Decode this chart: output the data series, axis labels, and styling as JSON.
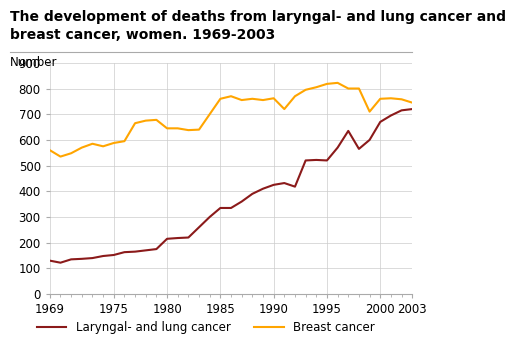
{
  "title_line1": "The development of deaths from laryngal- and lung cancer and",
  "title_line2": "breast cancer, women. 1969-2003",
  "ylabel": "Number",
  "years": [
    1969,
    1970,
    1971,
    1972,
    1973,
    1974,
    1975,
    1976,
    1977,
    1978,
    1979,
    1980,
    1981,
    1982,
    1983,
    1984,
    1985,
    1986,
    1987,
    1988,
    1989,
    1990,
    1991,
    1992,
    1993,
    1994,
    1995,
    1996,
    1997,
    1998,
    1999,
    2000,
    2001,
    2002,
    2003
  ],
  "larynx_lung": [
    130,
    122,
    135,
    137,
    140,
    148,
    152,
    163,
    165,
    170,
    175,
    215,
    218,
    220,
    260,
    300,
    335,
    335,
    360,
    390,
    410,
    425,
    432,
    418,
    520,
    522,
    520,
    570,
    635,
    565,
    600,
    670,
    695,
    715,
    720
  ],
  "breast": [
    560,
    535,
    548,
    570,
    585,
    575,
    588,
    595,
    665,
    675,
    678,
    645,
    645,
    638,
    640,
    700,
    760,
    770,
    755,
    760,
    755,
    762,
    720,
    770,
    795,
    805,
    818,
    822,
    800,
    800,
    710,
    760,
    762,
    758,
    745
  ],
  "larynx_color": "#8B1A1A",
  "breast_color": "#FFA500",
  "legend_larynx": "Laryngal- and lung cancer",
  "legend_breast": "Breast cancer",
  "xlim": [
    1969,
    2003
  ],
  "ylim": [
    0,
    900
  ],
  "yticks": [
    0,
    100,
    200,
    300,
    400,
    500,
    600,
    700,
    800,
    900
  ],
  "xticks": [
    1969,
    1975,
    1980,
    1985,
    1990,
    1995,
    2000,
    2003
  ],
  "background_color": "#ffffff",
  "grid_color": "#cccccc",
  "title_fontsize": 10,
  "label_fontsize": 8.5,
  "tick_fontsize": 8.5
}
